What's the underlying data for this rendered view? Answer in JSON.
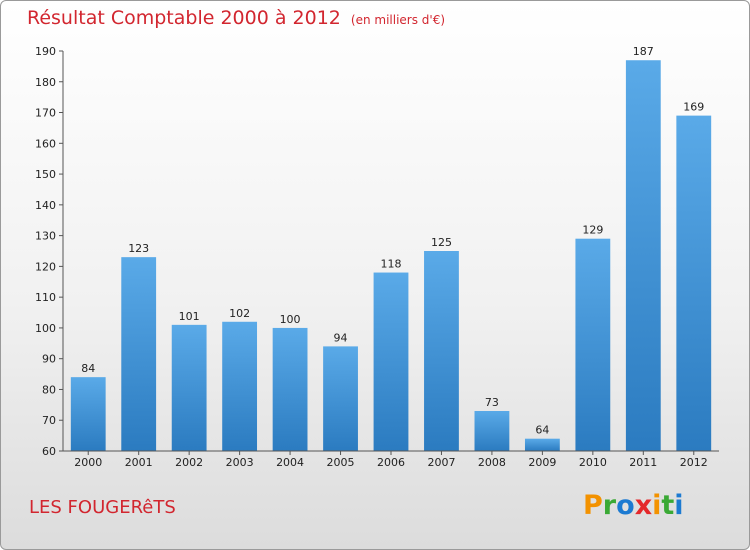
{
  "chart_data": {
    "type": "bar",
    "title": "Résultat Comptable 2000 à 2012",
    "unit_label": "(en milliers d'€)",
    "categories": [
      "2000",
      "2001",
      "2002",
      "2003",
      "2004",
      "2005",
      "2006",
      "2007",
      "2008",
      "2009",
      "2010",
      "2011",
      "2012"
    ],
    "values": [
      84,
      123,
      101,
      102,
      100,
      94,
      118,
      125,
      73,
      64,
      129,
      187,
      169
    ],
    "ylim": [
      60,
      190
    ],
    "yticks": [
      60,
      70,
      80,
      90,
      100,
      110,
      120,
      130,
      140,
      150,
      160,
      170,
      180,
      190
    ],
    "xlabel": "",
    "ylabel": "",
    "grid": false,
    "bar_color_top": "#5aaae8",
    "bar_color_bottom": "#2b7bc0"
  },
  "commune_name": "LES FOUGERêTS",
  "logo": {
    "letters": [
      "P",
      "r",
      "o",
      "x",
      "i",
      "t",
      "i"
    ],
    "colors": [
      "#f39200",
      "#3aa935",
      "#1c7ad1",
      "#e4282b",
      "#f39200",
      "#3aa935",
      "#1c7ad1"
    ]
  },
  "colors": {
    "accent": "#d2262f"
  }
}
